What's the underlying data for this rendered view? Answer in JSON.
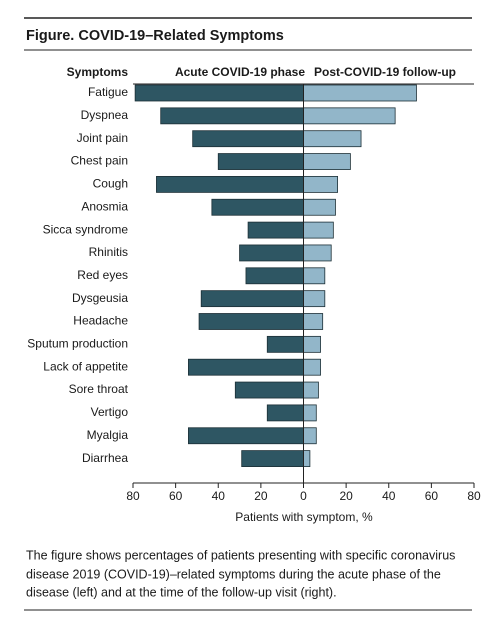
{
  "chart_data": {
    "type": "butterfly-bar",
    "title": "Figure. COVID-19–Related Symptoms",
    "category_header": "Symptoms",
    "categories": [
      "Fatigue",
      "Dyspnea",
      "Joint pain",
      "Chest pain",
      "Cough",
      "Anosmia",
      "Sicca syndrome",
      "Rhinitis",
      "Red eyes",
      "Dysgeusia",
      "Headache",
      "Sputum production",
      "Lack of appetite",
      "Sore throat",
      "Vertigo",
      "Myalgia",
      "Diarrhea"
    ],
    "series": [
      {
        "name": "Acute COVID-19 phase",
        "color": "#2e5663",
        "values": [
          -79,
          -67,
          -52,
          -40,
          -69,
          -43,
          -26,
          -30,
          -27,
          -48,
          -49,
          -17,
          -54,
          -32,
          -17,
          -54,
          -29
        ]
      },
      {
        "name": "Post-COVID-19 follow-up",
        "color": "#92b6c9",
        "values": [
          53,
          43,
          27,
          22,
          16,
          15,
          14,
          13,
          10,
          10,
          9,
          8,
          8,
          7,
          6,
          6,
          3
        ]
      }
    ],
    "x_label": "Patients with symptom, %",
    "xlim": [
      -80,
      80
    ],
    "xticks": [
      {
        "value": -80,
        "label": "80"
      },
      {
        "value": -60,
        "label": "60"
      },
      {
        "value": -40,
        "label": "40"
      },
      {
        "value": -20,
        "label": "20"
      },
      0,
      20,
      40,
      60,
      80
    ],
    "caption": [
      "The figure shows percentages of patients presenting with specific coronavirus",
      "disease 2019 (COVID-19)–related symptoms during the acute phase of the",
      "disease (left) and at the time of the follow-up visit (right)."
    ]
  }
}
